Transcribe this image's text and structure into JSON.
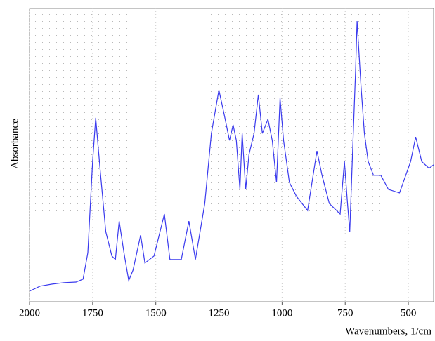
{
  "chart_data": {
    "type": "line",
    "x_label": "Wavenumbers, 1/cm",
    "y_label": "Absorbance",
    "x": [
      2000,
      1958,
      1910,
      1863,
      1816,
      1788,
      1769,
      1750,
      1738,
      1721,
      1698,
      1674,
      1660,
      1645,
      1626,
      1607,
      1590,
      1560,
      1543,
      1507,
      1466,
      1444,
      1399,
      1369,
      1343,
      1306,
      1280,
      1250,
      1228,
      1208,
      1194,
      1181,
      1167,
      1158,
      1144,
      1131,
      1111,
      1094,
      1078,
      1056,
      1039,
      1022,
      1008,
      994,
      971,
      943,
      899,
      862,
      842,
      813,
      770,
      753,
      741,
      732,
      721,
      709,
      703,
      688,
      674,
      659,
      638,
      609,
      579,
      535,
      491,
      471,
      447,
      418,
      400
    ],
    "series": [
      {
        "color": "#3a3aee",
        "values": [
          3.6,
          5.3,
          6.0,
          6.5,
          6.7,
          7.7,
          16.7,
          47.8,
          62.7,
          45.5,
          23.9,
          15.6,
          14.4,
          27.5,
          16.7,
          7.2,
          10.8,
          22.7,
          13.2,
          15.6,
          29.9,
          14.4,
          14.4,
          27.5,
          14.4,
          33.5,
          57.4,
          72.2,
          63.4,
          55.0,
          60.3,
          55.0,
          38.3,
          57.4,
          38.3,
          50.2,
          57.4,
          70.6,
          57.4,
          62.2,
          55.0,
          40.7,
          69.4,
          55.0,
          40.7,
          35.9,
          31.1,
          51.4,
          43.1,
          33.5,
          29.9,
          47.8,
          33.5,
          23.9,
          50.2,
          78.9,
          95.7,
          74.2,
          57.4,
          47.8,
          43.1,
          43.1,
          38.3,
          37.1,
          47.8,
          56.2,
          47.8,
          45.5,
          46.7
        ]
      }
    ],
    "xlim": [
      2000,
      400
    ],
    "xticks": [
      2000,
      1750,
      1500,
      1250,
      1000,
      750,
      500
    ],
    "ylim": [
      0,
      100
    ],
    "grid": true
  }
}
